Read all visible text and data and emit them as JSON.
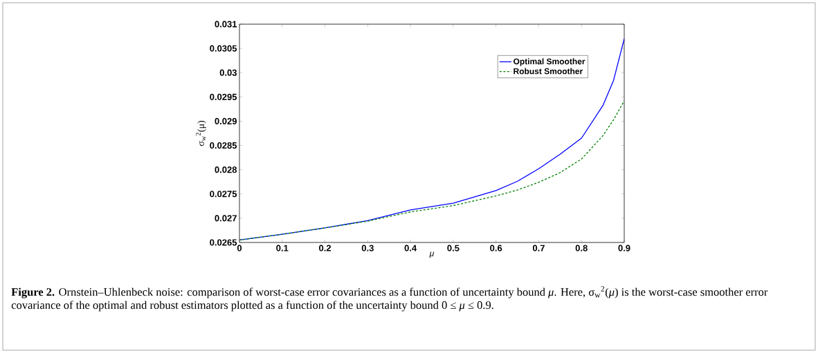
{
  "chart_data": {
    "type": "line",
    "xlabel": "μ",
    "ylabel": "σ$_{w}$$^{2}$(μ)",
    "x": [
      0,
      0.1,
      0.2,
      0.3,
      0.4,
      0.5,
      0.6,
      0.65,
      0.7,
      0.75,
      0.8,
      0.85,
      0.875,
      0.9
    ],
    "series": [
      {
        "name": "Optimal Smoother",
        "color": "#0000ff",
        "line_style": "solid",
        "values": [
          0.02655,
          0.02667,
          0.0268,
          0.02695,
          0.02717,
          0.02731,
          0.02757,
          0.02776,
          0.02802,
          0.02832,
          0.02865,
          0.02932,
          0.02984,
          0.0307
        ]
      },
      {
        "name": "Robust Smoother",
        "color": "#008000",
        "line_style": "dashed",
        "values": [
          0.02655,
          0.02667,
          0.0268,
          0.02694,
          0.02713,
          0.02726,
          0.02746,
          0.02758,
          0.02774,
          0.02794,
          0.02822,
          0.0287,
          0.02903,
          0.02942
        ]
      }
    ],
    "xlim": [
      0,
      0.9
    ],
    "ylim": [
      0.0265,
      0.031
    ],
    "xticks": [
      0,
      0.1,
      0.2,
      0.3,
      0.4,
      0.5,
      0.6,
      0.7,
      0.8,
      0.9
    ],
    "yticks": [
      0.0265,
      0.027,
      0.0275,
      0.028,
      0.0285,
      0.029,
      0.0295,
      0.03,
      0.0305,
      0.031
    ],
    "legend": "top right",
    "marker": "none",
    "grid": false,
    "annotations": [
      "**Figure 2.** Ornstein–Uhlenbeck noise: comparison of worst-case error covariances as a function of uncertainty bound *μ*. Here, σ$_{w}$$^{2}$(*μ*) is the worst-case smoother error covariance of the optimal and robust estimators plotted as a function of the uncertainty bound 0 ≤ *μ* ≤ 0.9."
    ]
  }
}
